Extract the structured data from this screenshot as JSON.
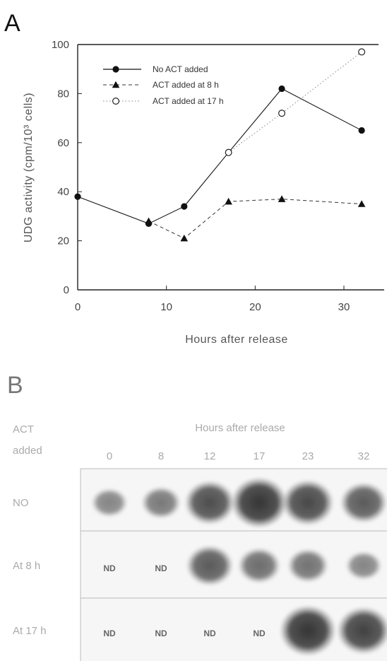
{
  "panel_a": {
    "letter": "A"
  },
  "panel_b": {
    "letter": "B",
    "header": "Hours after release",
    "row_header": [
      "ACT",
      "added"
    ],
    "columns": [
      "0",
      "8",
      "12",
      "17",
      "23",
      "32"
    ],
    "rows": [
      {
        "label": "NO",
        "cells": [
          "band",
          "band",
          "band",
          "band",
          "band",
          "band"
        ],
        "intensity": [
          0.35,
          0.45,
          0.8,
          1.0,
          0.85,
          0.7
        ]
      },
      {
        "label": "At 8 h",
        "cells": [
          "ND",
          "ND",
          "band",
          "band",
          "band",
          "band"
        ],
        "intensity": [
          0,
          0,
          0.7,
          0.55,
          0.5,
          0.35
        ]
      },
      {
        "label": "At 17 h",
        "cells": [
          "ND",
          "ND",
          "ND",
          "ND",
          "band",
          "band"
        ],
        "intensity": [
          0,
          0,
          0,
          0,
          1.0,
          0.9
        ]
      }
    ],
    "nd_label": "ND"
  },
  "chart_data": {
    "type": "line",
    "title": "",
    "xlabel": "Hours after release",
    "ylabel": "UDG activity (cpm/10³ cells)",
    "xlim": [
      0,
      35
    ],
    "ylim": [
      0,
      100
    ],
    "xticks": [
      "0",
      "10",
      "20",
      "30"
    ],
    "yticks": [
      "0",
      "20",
      "40",
      "60",
      "80",
      "100"
    ],
    "legend_position": "top-left",
    "series": [
      {
        "name": "No ACT added",
        "marker": "filled-circle",
        "line": "solid",
        "x": [
          0,
          8,
          12,
          17,
          23,
          32
        ],
        "y": [
          38,
          27,
          34,
          56,
          82,
          65
        ]
      },
      {
        "name": "ACT added at 8 h",
        "marker": "filled-triangle",
        "line": "dashed",
        "x": [
          8,
          12,
          17,
          23,
          32
        ],
        "y": [
          28,
          21,
          36,
          37,
          35
        ]
      },
      {
        "name": "ACT added at 17 h",
        "marker": "open-circle",
        "line": "dotted",
        "x": [
          17,
          23,
          32
        ],
        "y": [
          56,
          72,
          97
        ]
      }
    ]
  }
}
